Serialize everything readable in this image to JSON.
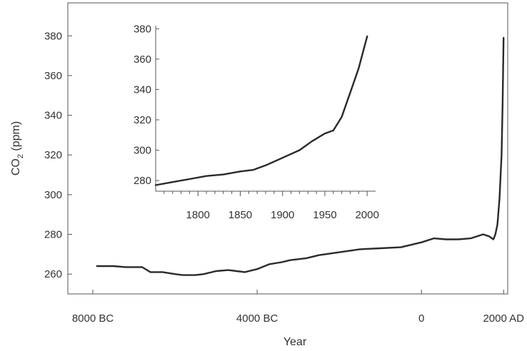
{
  "chart_data": [
    {
      "type": "line",
      "title": "",
      "xlabel": "Year",
      "ylabel_main": "CO",
      "ylabel_sub": "2",
      "ylabel_unit": " (ppm)",
      "xlim": [
        -8000,
        2100
      ],
      "ylim": [
        250,
        388
      ],
      "x_ticks": [
        {
          "value": -8000,
          "label": "8000 BC"
        },
        {
          "value": -4000,
          "label": "4000 BC"
        },
        {
          "value": 0,
          "label": "0"
        },
        {
          "value": 2000,
          "label": "2000 AD"
        }
      ],
      "y_ticks": [
        260,
        280,
        300,
        320,
        340,
        360,
        380
      ],
      "grid": false,
      "series": [
        {
          "x": [
            -7900,
            -7500,
            -7200,
            -7000,
            -6800,
            -6600,
            -6300,
            -6000,
            -5800,
            -5500,
            -5300,
            -5000,
            -4700,
            -4500,
            -4300,
            -4000,
            -3700,
            -3400,
            -3200,
            -2800,
            -2500,
            -2000,
            -1500,
            -1000,
            -500,
            0,
            300,
            600,
            900,
            1200,
            1500,
            1650,
            1750,
            1800,
            1850,
            1900,
            1950,
            1975,
            2000
          ],
          "y": [
            264,
            264,
            263.5,
            263.5,
            263.5,
            261,
            261,
            260,
            259.5,
            259.5,
            260,
            261.5,
            262,
            261.5,
            261,
            262.5,
            265,
            266,
            267,
            268,
            269.5,
            271,
            272.5,
            273,
            273.5,
            276,
            278,
            277.5,
            277.5,
            278,
            280,
            279,
            277.5,
            280,
            285,
            298,
            320,
            345,
            379
          ]
        }
      ]
    },
    {
      "type": "line",
      "title": "",
      "xlim": [
        1750,
        2010
      ],
      "ylim": [
        273,
        382
      ],
      "x_ticks": [
        1800,
        1850,
        1900,
        1950,
        2000
      ],
      "y_ticks": [
        280,
        300,
        320,
        340,
        360,
        380
      ],
      "grid": false,
      "series": [
        {
          "x": [
            1750,
            1770,
            1790,
            1810,
            1830,
            1850,
            1865,
            1880,
            1900,
            1920,
            1935,
            1950,
            1960,
            1970,
            1980,
            1990,
            2000
          ],
          "y": [
            277,
            279,
            281,
            283,
            284,
            286,
            287,
            290,
            295,
            300,
            306,
            311,
            313,
            322,
            338,
            354,
            375
          ]
        }
      ]
    }
  ]
}
